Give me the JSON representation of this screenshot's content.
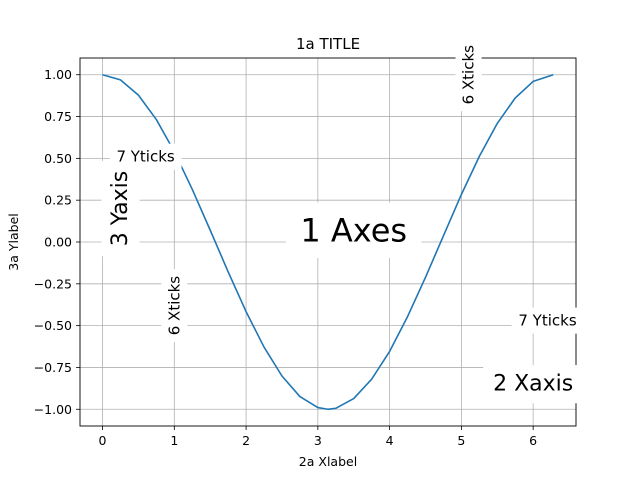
{
  "chart_data": {
    "type": "line",
    "title": "1a TITLE",
    "xlabel": "2a Xlabel",
    "ylabel": "3a Ylabel",
    "xlim": [
      -0.314,
      6.597
    ],
    "ylim": [
      -1.1,
      1.1
    ],
    "grid": true,
    "x_ticks": [
      0,
      1,
      2,
      3,
      4,
      5,
      6
    ],
    "x_tick_labels": [
      "0",
      "1",
      "2",
      "3",
      "4",
      "5",
      "6"
    ],
    "y_ticks": [
      -1.0,
      -0.75,
      -0.5,
      -0.25,
      0.0,
      0.25,
      0.5,
      0.75,
      1.0
    ],
    "y_tick_labels": [
      "−1.00",
      "−0.75",
      "−0.50",
      "−0.25",
      "0.00",
      "0.25",
      "0.50",
      "0.75",
      "1.00"
    ],
    "series": [
      {
        "color": "#1f77b4",
        "x": [
          0.0,
          0.25,
          0.5,
          0.75,
          1.0,
          1.25,
          1.5,
          1.75,
          2.0,
          2.25,
          2.5,
          2.75,
          3.0,
          3.14,
          3.25,
          3.5,
          3.75,
          4.0,
          4.25,
          4.5,
          4.75,
          5.0,
          5.25,
          5.5,
          5.75,
          6.0,
          6.28
        ],
        "y": [
          1.0,
          0.969,
          0.878,
          0.732,
          0.54,
          0.315,
          0.071,
          -0.178,
          -0.416,
          -0.628,
          -0.801,
          -0.924,
          -0.99,
          -1.0,
          -0.994,
          -0.936,
          -0.82,
          -0.654,
          -0.446,
          -0.211,
          0.037,
          0.284,
          0.512,
          0.709,
          0.861,
          0.96,
          1.0
        ]
      }
    ],
    "annotations": [
      {
        "text": "1 Axes",
        "x": 3.5,
        "y": 0.07,
        "rotate": 0,
        "size": 32
      },
      {
        "text": "2 Xaxis",
        "x": 6.0,
        "y": -0.85,
        "rotate": 0,
        "size": 22
      },
      {
        "text": "3 Yaxis",
        "x": 0.25,
        "y": 0.2,
        "rotate": -90,
        "size": 22
      },
      {
        "text": "6 Xticks",
        "x": 1.0,
        "y": -0.38,
        "rotate": -90,
        "size": 15
      },
      {
        "text": "6 Xticks",
        "x": 5.1,
        "y": 1.0,
        "rotate": -90,
        "size": 15
      },
      {
        "text": "7 Yticks",
        "x": 0.6,
        "y": 0.51,
        "rotate": 0,
        "size": 15
      },
      {
        "text": "7 Yticks",
        "x": 6.2,
        "y": -0.47,
        "rotate": 0,
        "size": 15
      }
    ]
  }
}
